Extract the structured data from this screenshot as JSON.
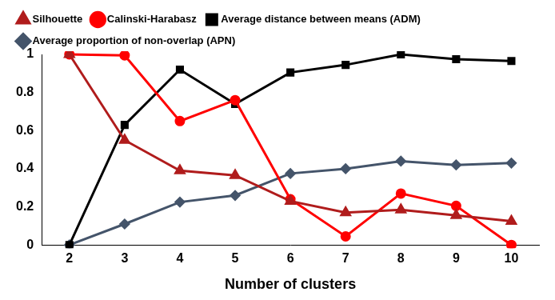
{
  "chart_data": {
    "type": "line",
    "x_label": "Number of clusters",
    "categories": [
      2,
      3,
      4,
      5,
      6,
      7,
      8,
      9,
      10
    ],
    "series": [
      {
        "name": "Silhouette",
        "color": "#b01c1c",
        "marker": "triangle",
        "values": [
          1.0,
          0.55,
          0.39,
          0.365,
          0.23,
          0.17,
          0.185,
          0.155,
          0.125
        ]
      },
      {
        "name": "Calinski-Harabasz",
        "color": "#ff0000",
        "marker": "circle",
        "values": [
          1.0,
          0.995,
          0.65,
          0.76,
          0.24,
          0.045,
          0.27,
          0.205,
          0.0
        ]
      },
      {
        "name": "Average distance between means (ADM)",
        "color": "#000000",
        "marker": "square",
        "values": [
          0.0,
          0.63,
          0.92,
          0.74,
          0.905,
          0.945,
          1.0,
          0.975,
          0.965
        ]
      },
      {
        "name": "Average proportion of non-overlap (APN)",
        "color": "#44546a",
        "marker": "diamond",
        "values": [
          0.0,
          0.11,
          0.225,
          0.26,
          0.375,
          0.4,
          0.44,
          0.42,
          0.43
        ]
      }
    ],
    "ylim": [
      0,
      1
    ],
    "yticks": [
      0,
      0.2,
      0.4,
      0.6,
      0.8,
      1
    ],
    "grid": false,
    "legend": "top"
  }
}
